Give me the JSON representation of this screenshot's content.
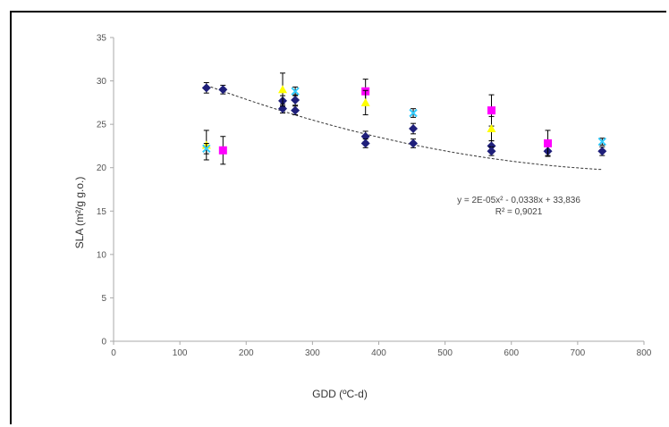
{
  "chart_data": {
    "type": "scatter",
    "xlabel": "GDD (ºC-d)",
    "ylabel": "SLA  (m²/g g.o.)",
    "xlim": [
      0,
      800
    ],
    "ylim": [
      0,
      35
    ],
    "x_ticks": [
      0,
      100,
      200,
      300,
      400,
      500,
      600,
      700,
      800
    ],
    "y_ticks": [
      0,
      5,
      10,
      15,
      20,
      25,
      30,
      35
    ],
    "x_tick_labels": [
      "0",
      "100",
      "200",
      "300",
      "400",
      "500",
      "600",
      "700",
      "800"
    ],
    "y_tick_labels": [
      "0",
      "5",
      "10",
      "15",
      "20",
      "25",
      "30",
      "35"
    ],
    "grid": false,
    "series": [
      {
        "marker": "diamond",
        "color": "#1f1f7a",
        "points": [
          {
            "x": 140,
            "y": 29.2,
            "err": 0.6
          },
          {
            "x": 165,
            "y": 29.0,
            "err": 0.5
          },
          {
            "x": 255,
            "y": 27.7,
            "err": 0.6
          },
          {
            "x": 255,
            "y": 26.8,
            "err": 0.5
          },
          {
            "x": 274,
            "y": 27.8,
            "err": 0.6
          },
          {
            "x": 274,
            "y": 26.6,
            "err": 0.5
          },
          {
            "x": 380,
            "y": 23.6,
            "err": 0.6
          },
          {
            "x": 380,
            "y": 22.8,
            "err": 0.5
          },
          {
            "x": 452,
            "y": 24.5,
            "err": 0.6
          },
          {
            "x": 452,
            "y": 22.8,
            "err": 0.5
          },
          {
            "x": 570,
            "y": 22.5,
            "err": 0.6
          },
          {
            "x": 570,
            "y": 21.9,
            "err": 0.5
          },
          {
            "x": 655,
            "y": 21.9,
            "err": 0.5
          },
          {
            "x": 737,
            "y": 21.9,
            "err": 0.5
          }
        ]
      },
      {
        "marker": "square",
        "color": "#ff00ff",
        "points": [
          {
            "x": 165,
            "y": 22.0,
            "err": 1.6
          },
          {
            "x": 380,
            "y": 28.8,
            "err": 1.4
          },
          {
            "x": 570,
            "y": 26.6,
            "err": 1.8
          },
          {
            "x": 655,
            "y": 22.8,
            "err": 1.5
          }
        ]
      },
      {
        "marker": "triangle",
        "color": "#ffff00",
        "points": [
          {
            "x": 140,
            "y": 22.6,
            "err": 1.7
          },
          {
            "x": 255,
            "y": 29.0,
            "err": 1.9
          },
          {
            "x": 380,
            "y": 27.5,
            "err": 1.4
          },
          {
            "x": 570,
            "y": 24.5,
            "err": 1.4
          }
        ]
      },
      {
        "marker": "x",
        "color": "#33ccff",
        "points": [
          {
            "x": 140,
            "y": 22.2,
            "err": 0.6
          },
          {
            "x": 274,
            "y": 28.8,
            "err": 0.5
          },
          {
            "x": 452,
            "y": 26.3,
            "err": 0.5
          },
          {
            "x": 737,
            "y": 23.0,
            "err": 0.4
          }
        ]
      }
    ],
    "trendline": {
      "type": "polynomial-2",
      "a": 2e-05,
      "b": -0.0338,
      "c": 33.836,
      "x_range": [
        140,
        737
      ],
      "equation": "y = 2E-05x² - 0,0338x + 33,836",
      "r2": "R² = 0,9021"
    }
  }
}
